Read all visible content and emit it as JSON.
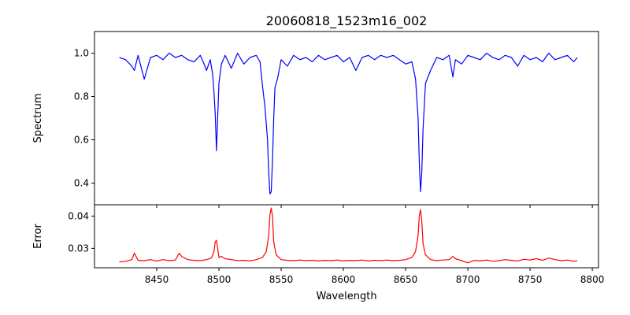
{
  "chart_data": {
    "type": "line",
    "title": "20060818_1523m16_002",
    "xlabel": "Wavelength",
    "xlim": [
      8400,
      8805
    ],
    "xticks": [
      8450,
      8500,
      8550,
      8600,
      8650,
      8700,
      8750,
      8800
    ],
    "panels": [
      {
        "name": "spectrum",
        "ylabel": "Spectrum",
        "ylim": [
          0.3,
          1.1
        ],
        "yticks": [
          0.4,
          0.6,
          0.8,
          1.0
        ],
        "ytick_labels": [
          "0.4",
          "0.6",
          "0.8",
          "1.0"
        ],
        "color": "#0000ff",
        "x": [
          8420,
          8425,
          8430,
          8432,
          8435,
          8440,
          8445,
          8450,
          8455,
          8460,
          8465,
          8470,
          8475,
          8480,
          8485,
          8488,
          8490,
          8493,
          8495,
          8496,
          8497,
          8498,
          8499,
          8500,
          8502,
          8505,
          8510,
          8515,
          8520,
          8525,
          8530,
          8533,
          8535,
          8537,
          8539,
          8540,
          8541,
          8542,
          8543,
          8544,
          8545,
          8547,
          8550,
          8555,
          8560,
          8565,
          8570,
          8575,
          8580,
          8585,
          8590,
          8595,
          8600,
          8605,
          8610,
          8615,
          8620,
          8625,
          8630,
          8635,
          8640,
          8645,
          8650,
          8655,
          8658,
          8660,
          8661,
          8662,
          8663,
          8664,
          8666,
          8670,
          8675,
          8680,
          8685,
          8688,
          8690,
          8695,
          8700,
          8705,
          8710,
          8715,
          8720,
          8725,
          8730,
          8735,
          8740,
          8745,
          8750,
          8755,
          8760,
          8765,
          8770,
          8775,
          8780,
          8785,
          8788
        ],
        "values": [
          0.98,
          0.97,
          0.94,
          0.92,
          0.99,
          0.88,
          0.98,
          0.99,
          0.97,
          1.0,
          0.98,
          0.99,
          0.97,
          0.96,
          0.99,
          0.95,
          0.92,
          0.97,
          0.9,
          0.82,
          0.72,
          0.55,
          0.7,
          0.86,
          0.95,
          0.99,
          0.93,
          1.0,
          0.95,
          0.98,
          0.99,
          0.96,
          0.85,
          0.75,
          0.6,
          0.45,
          0.35,
          0.36,
          0.5,
          0.7,
          0.84,
          0.88,
          0.97,
          0.94,
          0.99,
          0.97,
          0.98,
          0.96,
          0.99,
          0.97,
          0.98,
          0.99,
          0.96,
          0.98,
          0.92,
          0.98,
          0.99,
          0.97,
          0.99,
          0.98,
          0.99,
          0.97,
          0.95,
          0.96,
          0.88,
          0.7,
          0.5,
          0.36,
          0.45,
          0.65,
          0.86,
          0.92,
          0.98,
          0.97,
          0.99,
          0.89,
          0.97,
          0.95,
          0.99,
          0.98,
          0.97,
          1.0,
          0.98,
          0.97,
          0.99,
          0.98,
          0.94,
          0.99,
          0.97,
          0.98,
          0.96,
          1.0,
          0.97,
          0.98,
          0.99,
          0.96,
          0.98
        ]
      },
      {
        "name": "error",
        "ylabel": "Error",
        "ylim": [
          0.024,
          0.0435
        ],
        "yticks": [
          0.03,
          0.04
        ],
        "ytick_labels": [
          "0.03",
          "0.04"
        ],
        "color": "#ff0000",
        "x": [
          8420,
          8425,
          8430,
          8432,
          8435,
          8440,
          8445,
          8450,
          8455,
          8460,
          8465,
          8468,
          8470,
          8475,
          8480,
          8485,
          8490,
          8494,
          8496,
          8497,
          8498,
          8499,
          8500,
          8502,
          8505,
          8510,
          8515,
          8520,
          8525,
          8530,
          8535,
          8538,
          8540,
          8541,
          8542,
          8543,
          8544,
          8546,
          8550,
          8555,
          8560,
          8565,
          8570,
          8575,
          8580,
          8585,
          8590,
          8595,
          8600,
          8605,
          8610,
          8615,
          8620,
          8625,
          8630,
          8635,
          8640,
          8645,
          8650,
          8655,
          8658,
          8660,
          8661,
          8662,
          8663,
          8664,
          8666,
          8670,
          8675,
          8680,
          8685,
          8688,
          8690,
          8695,
          8700,
          8705,
          8710,
          8715,
          8720,
          8725,
          8730,
          8735,
          8740,
          8745,
          8750,
          8755,
          8760,
          8765,
          8770,
          8775,
          8780,
          8785,
          8788
        ],
        "values": [
          0.0258,
          0.026,
          0.0265,
          0.0285,
          0.0263,
          0.0262,
          0.0265,
          0.0261,
          0.0265,
          0.0262,
          0.0264,
          0.0285,
          0.0275,
          0.0265,
          0.0263,
          0.0262,
          0.0265,
          0.027,
          0.029,
          0.032,
          0.0325,
          0.03,
          0.0272,
          0.0275,
          0.0268,
          0.0265,
          0.0262,
          0.0263,
          0.0261,
          0.0265,
          0.0272,
          0.029,
          0.034,
          0.0405,
          0.0425,
          0.04,
          0.032,
          0.028,
          0.0265,
          0.0263,
          0.0262,
          0.0264,
          0.0262,
          0.0263,
          0.0261,
          0.0263,
          0.0262,
          0.0264,
          0.0261,
          0.0263,
          0.0262,
          0.0264,
          0.0261,
          0.0263,
          0.0262,
          0.0264,
          0.0262,
          0.0263,
          0.0265,
          0.0272,
          0.029,
          0.034,
          0.04,
          0.042,
          0.0385,
          0.0315,
          0.028,
          0.0265,
          0.0262,
          0.0264,
          0.0265,
          0.0275,
          0.0268,
          0.0262,
          0.0255,
          0.0263,
          0.0261,
          0.0264,
          0.026,
          0.0262,
          0.0265,
          0.0263,
          0.0261,
          0.0266,
          0.0264,
          0.0268,
          0.0263,
          0.027,
          0.0265,
          0.0262,
          0.0264,
          0.026,
          0.0262
        ]
      }
    ]
  }
}
